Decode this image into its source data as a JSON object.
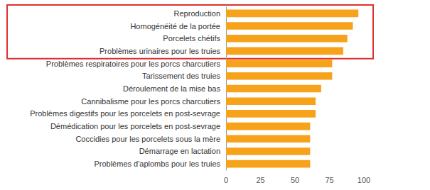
{
  "chart_data": {
    "type": "bar",
    "orientation": "horizontal",
    "categories": [
      "Reproduction",
      "Homogénéité de la portée",
      "Porcelets chétifs",
      "Problèmes urinaires pour les truies",
      "Problèmes respiratoires pour les porcs charcutiers",
      "Tarissement des truies",
      "Déroulement de la mise bas",
      "Cannibalisme pour les porcs charcutiers",
      "Problèmes digestifs pour les porcelets en post-sevrage",
      "Démédication pour les porcelets en post-sevrage",
      "Coccidies pour les porcelets sous la mère",
      "Démarrage en lactation",
      "Problèmes d'aplombs pour les truies"
    ],
    "values": [
      96,
      92,
      88,
      85,
      77,
      77,
      69,
      65,
      65,
      61,
      61,
      61,
      61
    ],
    "color": "#f7a21b",
    "xlim": [
      0,
      100
    ],
    "xticks": [
      0,
      25,
      50,
      75,
      100
    ],
    "grid": false
  }
}
